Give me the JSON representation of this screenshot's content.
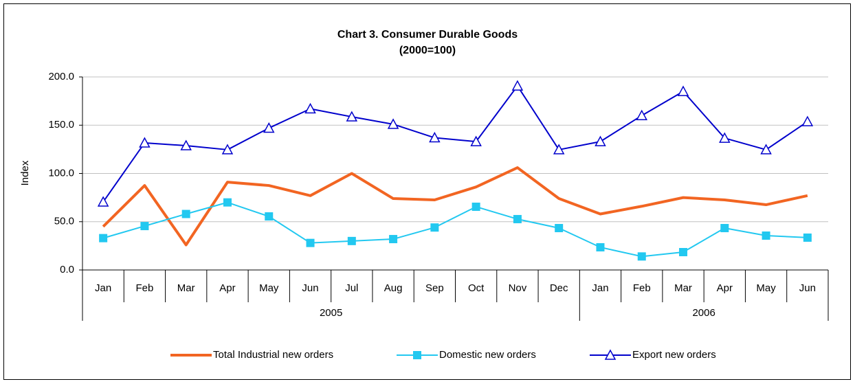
{
  "chart_data": {
    "type": "line",
    "title": "Chart 3.  Consumer Durable Goods",
    "subtitle": "(2000=100)",
    "y_label": "Index",
    "categories": [
      "Jan",
      "Feb",
      "Mar",
      "Apr",
      "May",
      "Jun",
      "Jul",
      "Aug",
      "Sep",
      "Oct",
      "Nov",
      "Dec",
      "Jan",
      "Feb",
      "Mar",
      "Apr",
      "May",
      "Jun"
    ],
    "x_groups": [
      {
        "label": "2005",
        "size": 12
      },
      {
        "label": "2006",
        "size": 6
      }
    ],
    "series": [
      {
        "name": "Total Industrial new orders",
        "color": "#f26522",
        "marker": "none",
        "values": [
          45,
          87.5,
          26,
          91,
          87.5,
          77,
          100,
          74,
          72.6,
          86,
          106,
          74,
          58,
          66,
          75,
          72.6,
          67.6,
          77
        ]
      },
      {
        "name": "Domestic new orders",
        "color": "#22c8f0",
        "marker": "square",
        "values": [
          33,
          45.5,
          58,
          70,
          55.5,
          28,
          30,
          32,
          44,
          65.5,
          52.7,
          43.4,
          23.5,
          14,
          18.5,
          43.4,
          35.6,
          33.5
        ]
      },
      {
        "name": "Export new orders",
        "color": "#0000cc",
        "marker": "triangle",
        "values": [
          70.5,
          131.7,
          128.8,
          124.6,
          147,
          167,
          158.7,
          151,
          137,
          133,
          190.7,
          124.6,
          133,
          160,
          185,
          136.6,
          124.6,
          153.7
        ]
      }
    ],
    "ylim": [
      0,
      200
    ],
    "yticks": [
      {
        "value": 0,
        "label": "0.0"
      },
      {
        "value": 50,
        "label": "50.0"
      },
      {
        "value": 100,
        "label": "100.0"
      },
      {
        "value": 150,
        "label": "150.0"
      },
      {
        "value": 200,
        "label": "200.0"
      }
    ],
    "grid": true,
    "legend": "bottom"
  }
}
